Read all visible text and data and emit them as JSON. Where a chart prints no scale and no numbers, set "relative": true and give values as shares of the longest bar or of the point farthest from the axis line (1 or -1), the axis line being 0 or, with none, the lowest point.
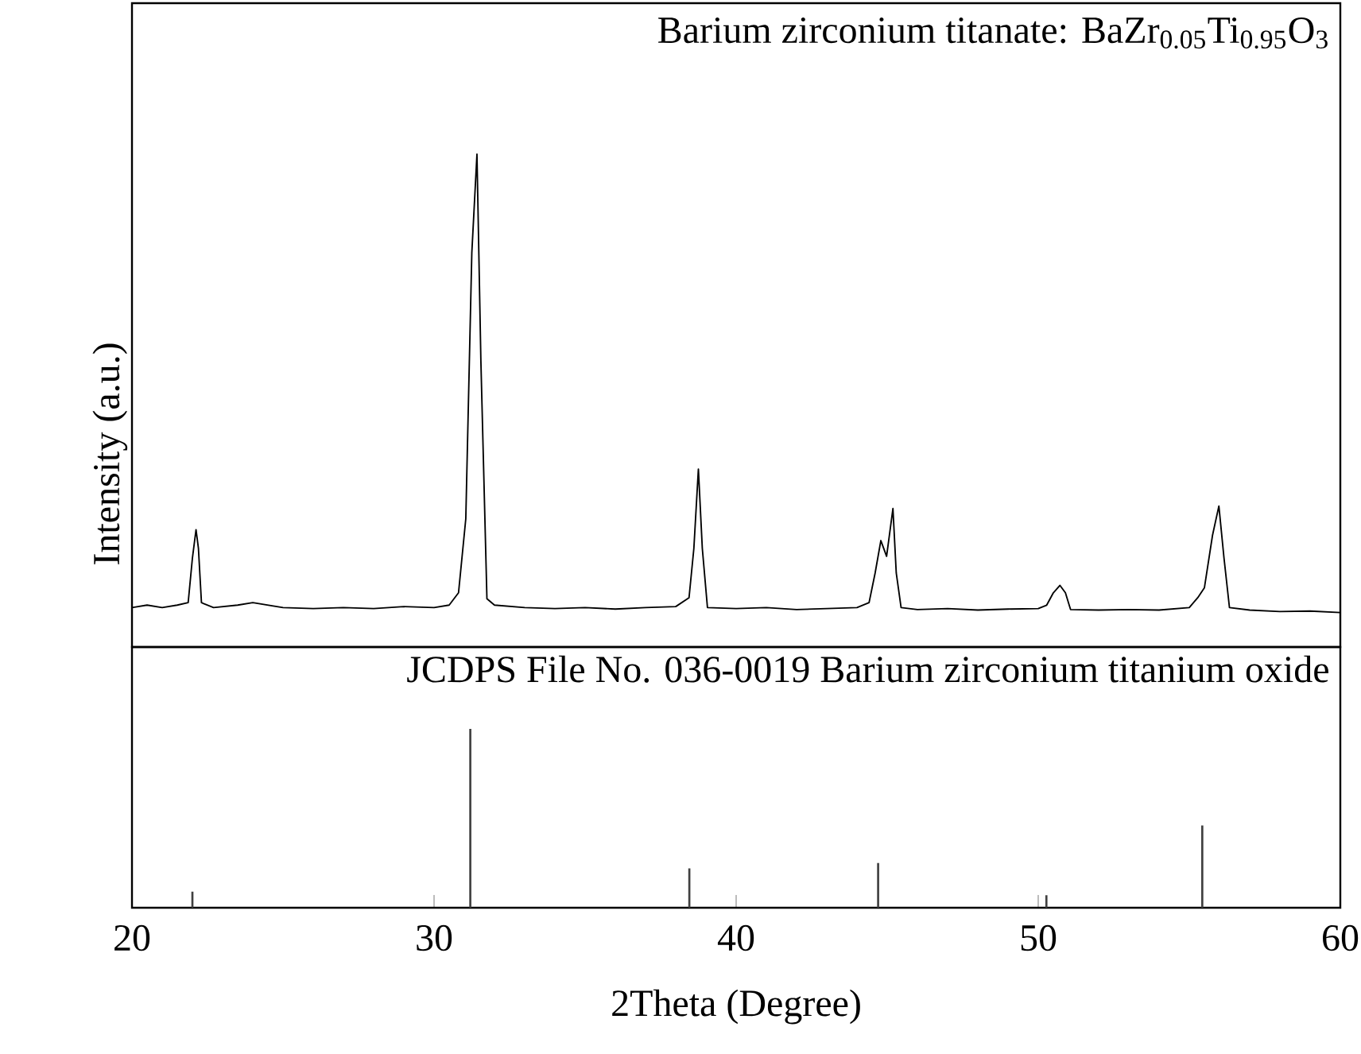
{
  "chart_data": [
    {
      "type": "line",
      "title": "Barium zirconium titanate: BaZr$_{0.05}$Ti$_{0.95}$O$_{3}$",
      "ylabel": "Intensity (a.u.)",
      "relative": true,
      "xlim": [
        20,
        60
      ],
      "tick_labels": false,
      "series": [
        {
          "color": "#000000",
          "x": [
            20,
            20.5,
            21,
            21.5,
            21.86,
            22.0,
            22.12,
            22.2,
            22.3,
            22.7,
            23.5,
            24,
            25,
            26,
            27,
            28,
            29,
            30,
            30.5,
            30.81,
            31.05,
            31.25,
            31.42,
            31.55,
            31.75,
            32,
            33,
            34,
            35,
            36,
            37,
            38,
            38.44,
            38.6,
            38.75,
            38.88,
            39.05,
            40,
            41,
            42,
            43,
            44,
            44.4,
            44.6,
            44.79,
            44.98,
            45.19,
            45.3,
            45.46,
            46,
            47,
            48,
            49,
            50,
            50.28,
            50.5,
            50.72,
            50.9,
            51.07,
            52,
            53,
            54,
            55,
            55.28,
            55.5,
            55.77,
            55.98,
            56.15,
            56.33,
            57,
            58,
            59,
            60
          ],
          "values": [
            0.08,
            0.085,
            0.08,
            0.085,
            0.09,
            0.18,
            0.238,
            0.2,
            0.09,
            0.08,
            0.085,
            0.09,
            0.08,
            0.078,
            0.08,
            0.078,
            0.082,
            0.08,
            0.085,
            0.11,
            0.26,
            0.8,
            1.0,
            0.58,
            0.098,
            0.085,
            0.08,
            0.078,
            0.08,
            0.077,
            0.08,
            0.082,
            0.1,
            0.2,
            0.361,
            0.2,
            0.08,
            0.078,
            0.08,
            0.076,
            0.078,
            0.08,
            0.09,
            0.15,
            0.216,
            0.184,
            0.281,
            0.15,
            0.08,
            0.076,
            0.078,
            0.075,
            0.077,
            0.078,
            0.085,
            0.11,
            0.125,
            0.11,
            0.076,
            0.075,
            0.076,
            0.075,
            0.08,
            0.1,
            0.12,
            0.227,
            0.286,
            0.18,
            0.08,
            0.075,
            0.072,
            0.073,
            0.07
          ]
        }
      ]
    },
    {
      "type": "bar",
      "title": "JCDPS File No. 036-0019 Barium zirconium titanium oxide",
      "xlabel": "2Theta (Degree)",
      "relative": true,
      "xlim": [
        20,
        60
      ],
      "xticks": [
        20,
        30,
        40,
        50,
        60
      ],
      "tick_labels": "x",
      "series": [
        {
          "color": "#404040",
          "x": [
            22.0,
            31.2,
            38.45,
            44.7,
            50.27,
            55.43
          ],
          "values": [
            0.09,
            1,
            0.22,
            0.25,
            0.07,
            0.46
          ]
        }
      ]
    }
  ]
}
